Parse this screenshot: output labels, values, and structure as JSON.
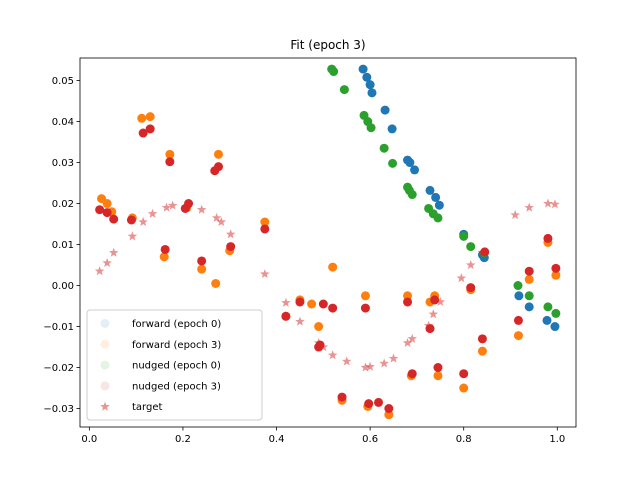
{
  "chart_data": {
    "type": "scatter",
    "title": "Fit (epoch 3)",
    "xlabel": "",
    "ylabel": "",
    "xlim": [
      -0.02,
      1.04
    ],
    "ylim": [
      -0.0345,
      0.0555
    ],
    "xticks": [
      0.0,
      0.2,
      0.4,
      0.6,
      0.8,
      1.0
    ],
    "xtick_labels": [
      "0.0",
      "0.2",
      "0.4",
      "0.6",
      "0.8",
      "1.0"
    ],
    "yticks": [
      -0.03,
      -0.02,
      -0.01,
      0.0,
      0.01,
      0.02,
      0.03,
      0.04,
      0.05
    ],
    "ytick_labels": [
      "−0.03",
      "−0.02",
      "−0.01",
      "0.00",
      "0.01",
      "0.02",
      "0.03",
      "0.04",
      "0.05"
    ],
    "grid": false,
    "legend_position": "lower-left",
    "series": [
      {
        "name": "forward (epoch 0)",
        "color": "#1f77b4",
        "marker": "circle",
        "x": [
          0.585,
          0.593,
          0.6,
          0.604,
          0.632,
          0.647,
          0.68,
          0.685,
          0.695,
          0.728,
          0.74,
          0.748,
          0.8,
          0.84,
          0.844,
          0.918,
          0.94,
          0.978,
          0.995
        ],
        "y": [
          0.0528,
          0.0508,
          0.049,
          0.047,
          0.0428,
          0.0382,
          0.0306,
          0.03,
          0.0282,
          0.0232,
          0.0215,
          0.0196,
          0.0125,
          0.0075,
          0.0068,
          -0.0025,
          -0.0052,
          -0.0085,
          -0.01
        ]
      },
      {
        "name": "forward (epoch 3)",
        "color": "#ff7f0e",
        "marker": "circle",
        "x": [
          0.026,
          0.038,
          0.048,
          0.092,
          0.112,
          0.13,
          0.16,
          0.172,
          0.208,
          0.24,
          0.27,
          0.276,
          0.3,
          0.375,
          0.42,
          0.45,
          0.475,
          0.49,
          0.52,
          0.54,
          0.59,
          0.595,
          0.64,
          0.68,
          0.688,
          0.728,
          0.738,
          0.745,
          0.8,
          0.815,
          0.84,
          0.917,
          0.94,
          0.98,
          0.997
        ],
        "y": [
          0.0212,
          0.02,
          0.018,
          0.0165,
          0.0408,
          0.0412,
          0.007,
          0.032,
          0.019,
          0.004,
          0.0005,
          0.032,
          0.0085,
          0.0155,
          -0.0075,
          -0.0035,
          -0.0045,
          -0.01,
          0.0045,
          -0.028,
          -0.0025,
          -0.0295,
          -0.0315,
          -0.0025,
          -0.022,
          -0.004,
          -0.0025,
          -0.022,
          -0.025,
          -0.001,
          -0.016,
          -0.0122,
          0.0015,
          0.0105,
          0.0025
        ]
      },
      {
        "name": "nudged (epoch 0)",
        "color": "#2ca02c",
        "marker": "circle",
        "x": [
          0.518,
          0.522,
          0.545,
          0.587,
          0.595,
          0.602,
          0.63,
          0.648,
          0.68,
          0.684,
          0.69,
          0.725,
          0.735,
          0.745,
          0.8,
          0.815,
          0.844,
          0.916,
          0.94,
          0.98,
          0.997
        ],
        "y": [
          0.0528,
          0.0522,
          0.0478,
          0.0415,
          0.04,
          0.0385,
          0.0335,
          0.0298,
          0.024,
          0.0232,
          0.0222,
          0.0188,
          0.0175,
          0.0165,
          0.012,
          0.0095,
          0.008,
          0.0,
          -0.0025,
          -0.0052,
          -0.0068
        ]
      },
      {
        "name": "nudged (epoch 3)",
        "color": "#d62728",
        "marker": "circle",
        "x": [
          0.022,
          0.038,
          0.052,
          0.09,
          0.115,
          0.13,
          0.162,
          0.172,
          0.205,
          0.212,
          0.24,
          0.268,
          0.276,
          0.302,
          0.375,
          0.42,
          0.45,
          0.49,
          0.493,
          0.5,
          0.52,
          0.54,
          0.59,
          0.597,
          0.618,
          0.64,
          0.68,
          0.69,
          0.728,
          0.738,
          0.745,
          0.8,
          0.815,
          0.84,
          0.845,
          0.917,
          0.94,
          0.98,
          0.997
        ],
        "y": [
          0.0185,
          0.0178,
          0.0162,
          0.016,
          0.0372,
          0.0382,
          0.0088,
          0.0302,
          0.0188,
          0.02,
          0.006,
          0.028,
          0.029,
          0.0095,
          0.0138,
          -0.0075,
          -0.004,
          -0.015,
          -0.0145,
          -0.0045,
          -0.0055,
          -0.0272,
          -0.0055,
          -0.0288,
          -0.0285,
          -0.03,
          -0.004,
          -0.0215,
          -0.0105,
          -0.0035,
          -0.02,
          -0.0215,
          -0.0005,
          -0.013,
          0.0082,
          -0.0085,
          0.0035,
          0.0115,
          0.0042
        ]
      },
      {
        "name": "target",
        "color": "#d62728",
        "marker": "star",
        "x": [
          0.022,
          0.038,
          0.052,
          0.092,
          0.115,
          0.135,
          0.165,
          0.178,
          0.21,
          0.24,
          0.272,
          0.282,
          0.302,
          0.375,
          0.42,
          0.45,
          0.49,
          0.5,
          0.52,
          0.55,
          0.59,
          0.6,
          0.63,
          0.65,
          0.68,
          0.69,
          0.725,
          0.735,
          0.75,
          0.795,
          0.815,
          0.84,
          0.91,
          0.94,
          0.98,
          0.995
        ],
        "y": [
          0.0035,
          0.0055,
          0.008,
          0.012,
          0.0155,
          0.0175,
          0.019,
          0.0195,
          0.019,
          0.0185,
          0.0165,
          0.0155,
          0.0125,
          0.0028,
          -0.0042,
          -0.0088,
          -0.014,
          -0.015,
          -0.017,
          -0.0185,
          -0.02,
          -0.0198,
          -0.019,
          -0.0178,
          -0.014,
          -0.013,
          -0.0098,
          -0.007,
          -0.004,
          0.0018,
          0.005,
          0.008,
          0.0172,
          0.019,
          0.02,
          0.0198
        ]
      }
    ]
  }
}
